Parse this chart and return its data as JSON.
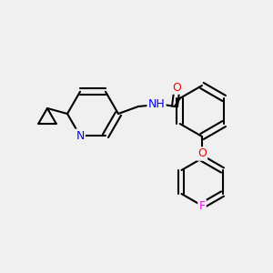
{
  "background_color": "#f0f0f0",
  "bond_color": "#000000",
  "atom_colors": {
    "O": "#ff0000",
    "N": "#0000ff",
    "F": "#ff00ff",
    "C": "#000000"
  },
  "figsize": [
    3.0,
    3.0
  ],
  "dpi": 100
}
